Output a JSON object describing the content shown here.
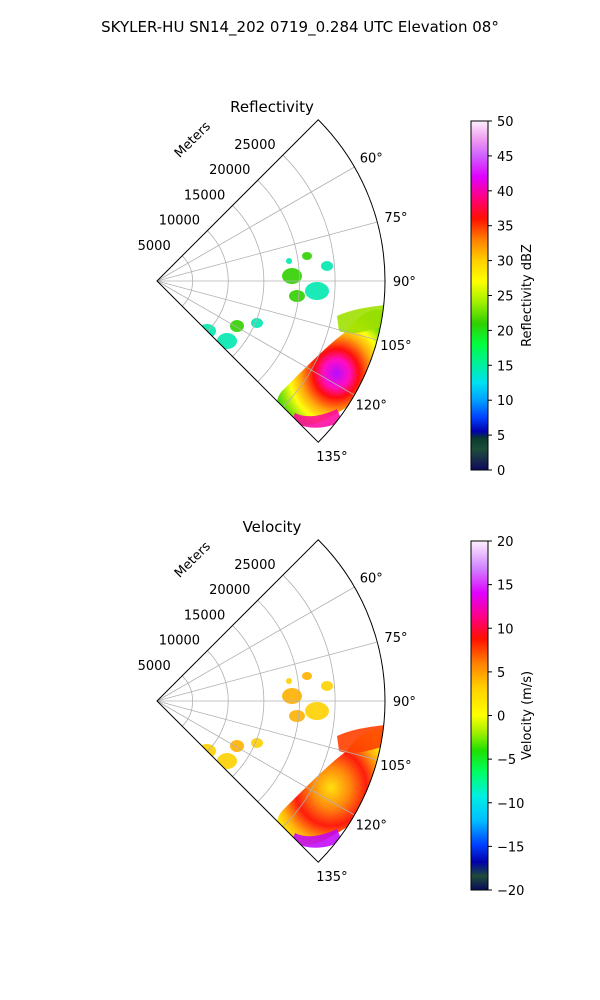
{
  "figure": {
    "suptitle": "SKYLER-HU  SN14_202  0719_0.284 UTC Elevation 08°"
  },
  "chart_data": [
    {
      "type": "polar-sector",
      "title": "Reflectivity",
      "radial_label": "Meters",
      "r_ticks": [
        5000,
        10000,
        15000,
        20000,
        25000
      ],
      "theta_ticks": [
        60,
        75,
        90,
        105,
        120,
        135
      ],
      "theta_range_deg": [
        45,
        135
      ],
      "r_max": 32000,
      "colorbar": {
        "label": "Reflectivity dBZ",
        "range": [
          0,
          50
        ],
        "ticks": [
          0,
          5,
          10,
          15,
          20,
          25,
          30,
          35,
          40,
          45,
          50
        ]
      }
    },
    {
      "type": "polar-sector",
      "title": "Velocity",
      "radial_label": "Meters",
      "r_ticks": [
        5000,
        10000,
        15000,
        20000,
        25000
      ],
      "theta_ticks": [
        60,
        75,
        90,
        105,
        120,
        135
      ],
      "theta_range_deg": [
        45,
        135
      ],
      "r_max": 32000,
      "colorbar": {
        "label": "Velocity (m/s)",
        "range": [
          -20,
          20
        ],
        "ticks": [
          -20,
          -15,
          -10,
          -5,
          0,
          5,
          10,
          15,
          20
        ]
      }
    }
  ]
}
